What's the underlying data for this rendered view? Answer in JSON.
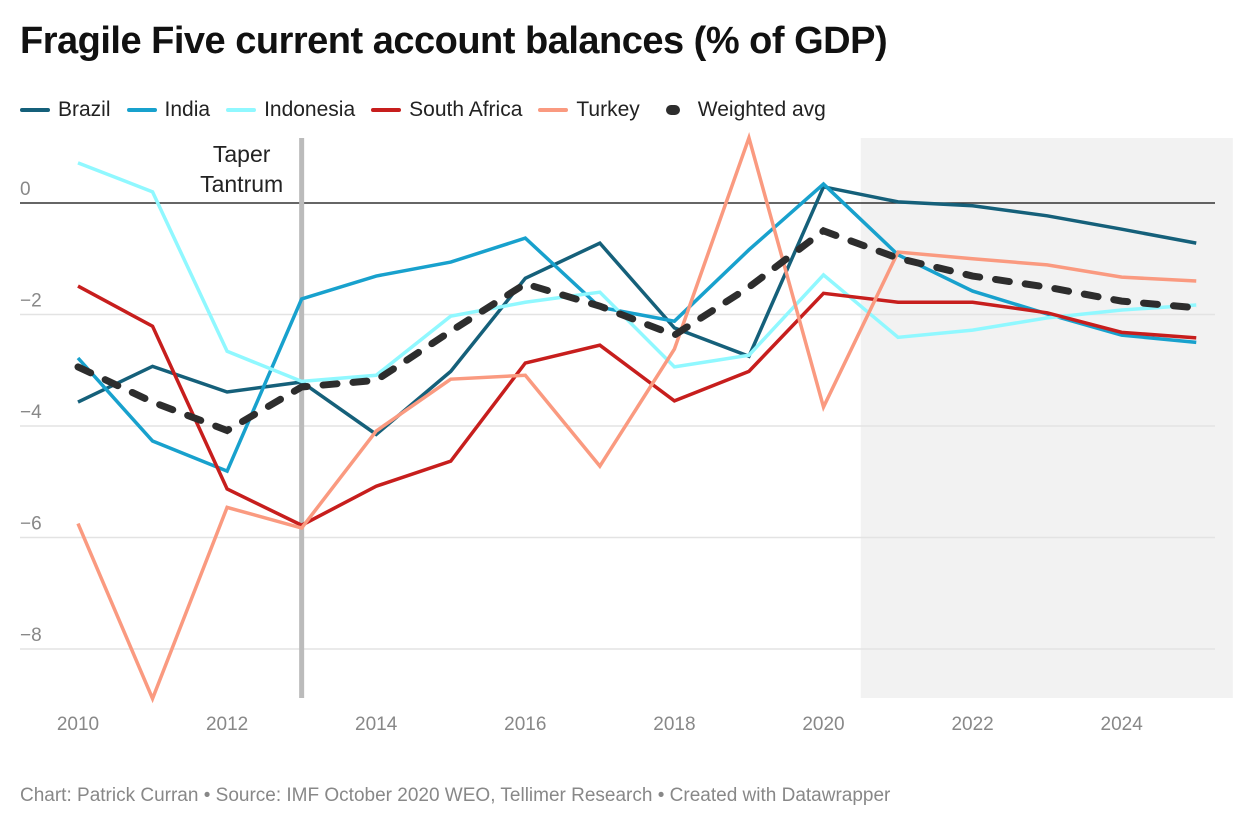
{
  "chart_data": {
    "type": "line",
    "title": "Fragile Five current account balances (% of GDP)",
    "xlabel": "",
    "ylabel": "",
    "x": [
      2010,
      2011,
      2012,
      2013,
      2014,
      2015,
      2016,
      2017,
      2018,
      2019,
      2020,
      2021,
      2022,
      2023,
      2024,
      2025
    ],
    "xlim": [
      2010,
      2025.25
    ],
    "ylim": [
      -8.9,
      1.2
    ],
    "x_ticks": [
      "2010",
      "2012",
      "2014",
      "2016",
      "2018",
      "2020",
      "2022",
      "2024"
    ],
    "y_ticks": [
      "0",
      "−2",
      "−4",
      "−6",
      "−8"
    ],
    "grid": "horizontal",
    "legend_placement": "top",
    "series": [
      {
        "name": "Brazil",
        "color": "#15607a",
        "dashed": false,
        "values": [
          -3.57,
          -2.93,
          -3.39,
          -3.21,
          -4.15,
          -3.02,
          -1.35,
          -0.72,
          -2.24,
          -2.75,
          0.29,
          0.02,
          -0.05,
          -0.23,
          -0.47,
          -0.72
        ]
      },
      {
        "name": "India",
        "color": "#18a1cd",
        "dashed": false,
        "values": [
          -2.78,
          -4.27,
          -4.81,
          -1.72,
          -1.31,
          -1.06,
          -0.63,
          -1.87,
          -2.12,
          -0.84,
          0.34,
          -0.93,
          -1.58,
          -1.99,
          -2.37,
          -2.5
        ]
      },
      {
        "name": "Indonesia",
        "color": "#90f8ff",
        "dashed": false,
        "values": [
          0.72,
          0.2,
          -2.66,
          -3.2,
          -3.09,
          -2.03,
          -1.78,
          -1.6,
          -2.94,
          -2.73,
          -1.29,
          -2.41,
          -2.28,
          -2.06,
          -1.92,
          -1.83
        ]
      },
      {
        "name": "South Africa",
        "color": "#c71e1d",
        "dashed": false,
        "values": [
          -1.49,
          -2.21,
          -5.13,
          -5.78,
          -5.08,
          -4.63,
          -2.87,
          -2.55,
          -3.55,
          -3.02,
          -1.62,
          -1.78,
          -1.78,
          -1.97,
          -2.32,
          -2.42
        ]
      },
      {
        "name": "Turkey",
        "color": "#fa9a80",
        "dashed": false,
        "values": [
          -5.75,
          -8.89,
          -5.46,
          -5.83,
          -4.09,
          -3.16,
          -3.09,
          -4.72,
          -2.62,
          1.17,
          -3.66,
          -0.88,
          -1.0,
          -1.11,
          -1.33,
          -1.4
        ]
      },
      {
        "name": "Weighted avg",
        "color": "#2d2d2d",
        "dashed": true,
        "values": [
          -2.94,
          -3.57,
          -4.08,
          -3.3,
          -3.18,
          -2.3,
          -1.45,
          -1.85,
          -2.37,
          -1.51,
          -0.5,
          -0.99,
          -1.31,
          -1.51,
          -1.76,
          -1.88
        ]
      }
    ],
    "annotations": [
      {
        "text_lines": [
          "Taper",
          "Tantrum"
        ],
        "x": 2013,
        "type": "vertical-line",
        "color": "#bbbbbb"
      }
    ],
    "shaded_region": {
      "x_from": 2020.5,
      "x_to": 2025.25,
      "color": "#f2f2f2",
      "meaning": "forecast"
    }
  },
  "footer": "Chart: Patrick Curran • Source: IMF October 2020 WEO, Tellimer Research • Created with Datawrapper"
}
